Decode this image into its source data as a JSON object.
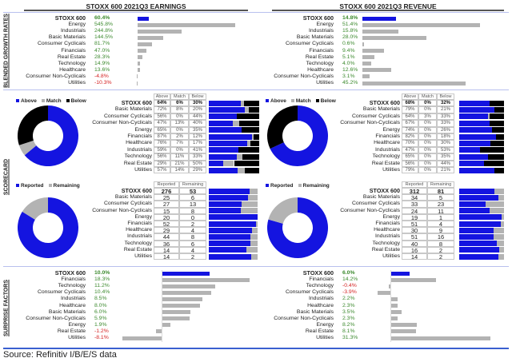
{
  "colors": {
    "above": "#1414e0",
    "match": "#b3b3b3",
    "below": "#000000",
    "positive": "#3c8a2e",
    "negative": "#d42020",
    "accent_line": "#3a5fd0"
  },
  "sections": {
    "blended": "BLENDED GROWTH RATES",
    "scorecard": "SCORECARD",
    "surprise": "SURPRISE FACTORS"
  },
  "panels": [
    {
      "title": "STOXX 600 2021Q3 EARNINGS",
      "growth": [
        {
          "name": "STOXX 600",
          "value": "60.4%",
          "num": 60.4
        },
        {
          "name": "Energy",
          "value": "545.8%",
          "num": 545.8
        },
        {
          "name": "Industrials",
          "value": "244.8%",
          "num": 244.8
        },
        {
          "name": "Basic Materials",
          "value": "144.5%",
          "num": 144.5
        },
        {
          "name": "Consumer Cyclicals",
          "value": "81.7%",
          "num": 81.7
        },
        {
          "name": "Financials",
          "value": "47.0%",
          "num": 47.0
        },
        {
          "name": "Real Estate",
          "value": "28.3%",
          "num": 28.3
        },
        {
          "name": "Technology",
          "value": "14.9%",
          "num": 14.9
        },
        {
          "name": "Healthcare",
          "value": "13.6%",
          "num": 13.6
        },
        {
          "name": "Consumer Non-Cyclicals",
          "value": "-4.8%",
          "num": -4.8
        },
        {
          "name": "Utilities",
          "value": "-10.3%",
          "num": -10.3
        }
      ],
      "scorecard_legend": [
        "Above",
        "Match",
        "Below"
      ],
      "scorecard_headers": [
        "Above",
        "Match",
        "Below"
      ],
      "scorecard": [
        {
          "name": "STOXX 600",
          "above": "64%",
          "match": "6%",
          "below": "30%",
          "a": 64,
          "m": 6,
          "b": 30
        },
        {
          "name": "Basic Materials",
          "above": "72%",
          "match": "8%",
          "below": "20%",
          "a": 72,
          "m": 8,
          "b": 20
        },
        {
          "name": "Consumer Cyclicals",
          "above": "56%",
          "match": "0%",
          "below": "44%",
          "a": 56,
          "m": 0,
          "b": 44
        },
        {
          "name": "Consumer Non-Cyclicals",
          "above": "47%",
          "match": "13%",
          "below": "40%",
          "a": 47,
          "m": 13,
          "b": 40
        },
        {
          "name": "Energy",
          "above": "65%",
          "match": "0%",
          "below": "35%",
          "a": 65,
          "m": 0,
          "b": 35
        },
        {
          "name": "Financials",
          "above": "87%",
          "match": "2%",
          "below": "12%",
          "a": 87,
          "m": 2,
          "b": 12
        },
        {
          "name": "Healthcare",
          "above": "76%",
          "match": "7%",
          "below": "17%",
          "a": 76,
          "m": 7,
          "b": 17
        },
        {
          "name": "Industrials",
          "above": "59%",
          "match": "0%",
          "below": "41%",
          "a": 59,
          "m": 0,
          "b": 41
        },
        {
          "name": "Technology",
          "above": "56%",
          "match": "11%",
          "below": "33%",
          "a": 56,
          "m": 11,
          "b": 33
        },
        {
          "name": "Real Estate",
          "above": "29%",
          "match": "21%",
          "below": "50%",
          "a": 29,
          "m": 21,
          "b": 50
        },
        {
          "name": "Utilities",
          "above": "57%",
          "match": "14%",
          "below": "29%",
          "a": 57,
          "m": 14,
          "b": 29
        }
      ],
      "reported_legend": [
        "Reported",
        "Remaining"
      ],
      "reported_headers": [
        "Reported",
        "Remaining"
      ],
      "reported": [
        {
          "name": "STOXX 600",
          "reported": "276",
          "remaining": "53"
        },
        {
          "name": "Basic Materials",
          "reported": "25",
          "remaining": "6"
        },
        {
          "name": "Consumer Cyclicals",
          "reported": "27",
          "remaining": "13"
        },
        {
          "name": "Consumer Non-Cyclicals",
          "reported": "15",
          "remaining": "8"
        },
        {
          "name": "Energy",
          "reported": "20",
          "remaining": "0"
        },
        {
          "name": "Financials",
          "reported": "52",
          "remaining": "2"
        },
        {
          "name": "Healthcare",
          "reported": "29",
          "remaining": "4"
        },
        {
          "name": "Industrials",
          "reported": "44",
          "remaining": "8"
        },
        {
          "name": "Technology",
          "reported": "36",
          "remaining": "6"
        },
        {
          "name": "Real Estate",
          "reported": "14",
          "remaining": "4"
        },
        {
          "name": "Utilities",
          "reported": "14",
          "remaining": "2"
        }
      ],
      "surprise": [
        {
          "name": "STOXX 600",
          "value": "10.0%",
          "num": 10.0
        },
        {
          "name": "Financials",
          "value": "18.3%",
          "num": 18.3
        },
        {
          "name": "Technology",
          "value": "11.2%",
          "num": 11.2
        },
        {
          "name": "Consumer Cyclicals",
          "value": "10.4%",
          "num": 10.4
        },
        {
          "name": "Industrials",
          "value": "8.5%",
          "num": 8.5
        },
        {
          "name": "Healthcare",
          "value": "8.0%",
          "num": 8.0
        },
        {
          "name": "Basic Materials",
          "value": "6.0%",
          "num": 6.0
        },
        {
          "name": "Consumer Non-Cyclicals",
          "value": "5.9%",
          "num": 5.9
        },
        {
          "name": "Energy",
          "value": "1.9%",
          "num": 1.9
        },
        {
          "name": "Real Estate",
          "value": "-1.2%",
          "num": -1.2
        },
        {
          "name": "Utilities",
          "value": "-8.1%",
          "num": -8.1
        }
      ]
    },
    {
      "title": "STOXX 600 2021Q3 REVENUE",
      "growth": [
        {
          "name": "STOXX 600",
          "value": "14.8%",
          "num": 14.8
        },
        {
          "name": "Energy",
          "value": "51.4%",
          "num": 51.4
        },
        {
          "name": "Industrials",
          "value": "15.8%",
          "num": 15.8
        },
        {
          "name": "Basic Materials",
          "value": "28.0%",
          "num": 28.0
        },
        {
          "name": "Consumer Cyclicals",
          "value": "0.6%",
          "num": 0.6
        },
        {
          "name": "Financials",
          "value": "9.4%",
          "num": 9.4
        },
        {
          "name": "Real Estate",
          "value": "5.1%",
          "num": 5.1
        },
        {
          "name": "Technology",
          "value": "4.0%",
          "num": 4.0
        },
        {
          "name": "Healthcare",
          "value": "12.6%",
          "num": 12.6
        },
        {
          "name": "Consumer Non-Cyclicals",
          "value": "3.1%",
          "num": 3.1
        },
        {
          "name": "Utilities",
          "value": "45.2%",
          "num": 45.2
        }
      ],
      "scorecard_legend": [
        "Above",
        "Match",
        "Below"
      ],
      "scorecard_headers": [
        "Above",
        "Match",
        "Below"
      ],
      "scorecard": [
        {
          "name": "STOXX 600",
          "above": "68%",
          "match": "0%",
          "below": "32%",
          "a": 68,
          "m": 0,
          "b": 32
        },
        {
          "name": "Basic Materials",
          "above": "79%",
          "match": "0%",
          "below": "21%",
          "a": 79,
          "m": 0,
          "b": 21
        },
        {
          "name": "Consumer Cyclicals",
          "above": "64%",
          "match": "3%",
          "below": "33%",
          "a": 64,
          "m": 3,
          "b": 33
        },
        {
          "name": "Consumer Non-Cyclicals",
          "above": "67%",
          "match": "0%",
          "below": "33%",
          "a": 67,
          "m": 0,
          "b": 33
        },
        {
          "name": "Energy",
          "above": "74%",
          "match": "0%",
          "below": "26%",
          "a": 74,
          "m": 0,
          "b": 26
        },
        {
          "name": "Financials",
          "above": "82%",
          "match": "0%",
          "below": "18%",
          "a": 82,
          "m": 0,
          "b": 18
        },
        {
          "name": "Healthcare",
          "above": "70%",
          "match": "0%",
          "below": "30%",
          "a": 70,
          "m": 0,
          "b": 30
        },
        {
          "name": "Industrials",
          "above": "47%",
          "match": "0%",
          "below": "53%",
          "a": 47,
          "m": 0,
          "b": 53
        },
        {
          "name": "Technology",
          "above": "65%",
          "match": "0%",
          "below": "35%",
          "a": 65,
          "m": 0,
          "b": 35
        },
        {
          "name": "Real Estate",
          "above": "56%",
          "match": "0%",
          "below": "44%",
          "a": 56,
          "m": 0,
          "b": 44
        },
        {
          "name": "Utilities",
          "above": "79%",
          "match": "0%",
          "below": "21%",
          "a": 79,
          "m": 0,
          "b": 21
        }
      ],
      "reported_legend": [
        "Reported",
        "Remaining"
      ],
      "reported_headers": [
        "Reported",
        "Remaining"
      ],
      "reported": [
        {
          "name": "STOXX 600",
          "reported": "312",
          "remaining": "81"
        },
        {
          "name": "Basic Materials",
          "reported": "34",
          "remaining": "5"
        },
        {
          "name": "Consumer Cyclicals",
          "reported": "33",
          "remaining": "23"
        },
        {
          "name": "Consumer Non-Cyclicals",
          "reported": "24",
          "remaining": "11"
        },
        {
          "name": "Energy",
          "reported": "19",
          "remaining": "1"
        },
        {
          "name": "Financials",
          "reported": "51",
          "remaining": "4"
        },
        {
          "name": "Healthcare",
          "reported": "30",
          "remaining": "9"
        },
        {
          "name": "Industrials",
          "reported": "51",
          "remaining": "16"
        },
        {
          "name": "Technology",
          "reported": "40",
          "remaining": "8"
        },
        {
          "name": "Real Estate",
          "reported": "16",
          "remaining": "2"
        },
        {
          "name": "Utilities",
          "reported": "14",
          "remaining": "2"
        }
      ],
      "surprise": [
        {
          "name": "STOXX 600",
          "value": "6.0%",
          "num": 6.0
        },
        {
          "name": "Financials",
          "value": "14.2%",
          "num": 14.2
        },
        {
          "name": "Technology",
          "value": "-0.4%",
          "num": -0.4
        },
        {
          "name": "Consumer Cyclicals",
          "value": "-3.9%",
          "num": -3.9
        },
        {
          "name": "Industrials",
          "value": "2.2%",
          "num": 2.2
        },
        {
          "name": "Healthcare",
          "value": "2.3%",
          "num": 2.3
        },
        {
          "name": "Basic Materials",
          "value": "3.5%",
          "num": 3.5
        },
        {
          "name": "Consumer Non-Cyclicals",
          "value": "2.3%",
          "num": 2.3
        },
        {
          "name": "Energy",
          "value": "8.2%",
          "num": 8.2
        },
        {
          "name": "Real Estate",
          "value": "8.1%",
          "num": 8.1
        },
        {
          "name": "Utilities",
          "value": "31.3%",
          "num": 31.3
        }
      ]
    }
  ],
  "source": "Source: Refinitiv I/B/E/S data"
}
